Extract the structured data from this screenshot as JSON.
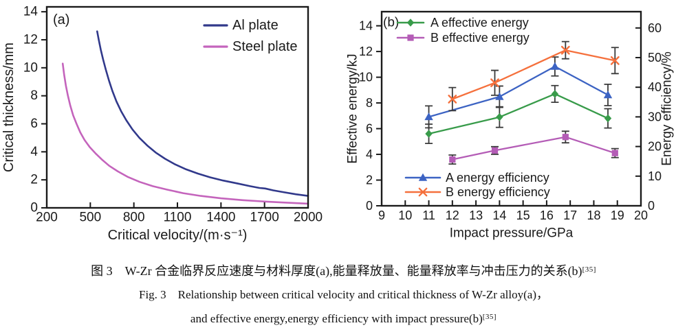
{
  "figure": {
    "caption_zh": "图 3　W-Zr 合金临界反应速度与材料厚度(a),能量释放量、能量释放率与冲击压力的关系(b)",
    "caption_zh_ref": "[35]",
    "caption_en_line1": "Fig. 3　Relationship between critical velocity and critical thickness of W-Zr alloy(a)，",
    "caption_en_line2": "and effective energy,energy efficiency with impact pressure(b)",
    "caption_en_ref": "[35]"
  },
  "colors": {
    "text": "#1a1a1a",
    "axis": "#1a1a1a",
    "error_bar": "#3a3a3a"
  },
  "chart_data": [
    {
      "type": "line",
      "panel_label": "(a)",
      "xlabel": "Critical velocity/(m·s⁻¹)",
      "ylabel": "Critical thickness/mm",
      "xlim": [
        200,
        2000
      ],
      "ylim": [
        0,
        14.35
      ],
      "xticks": [
        200,
        500,
        800,
        1100,
        1400,
        1700,
        2000
      ],
      "yticks": [
        0,
        2,
        4,
        6,
        8,
        10,
        12,
        14
      ],
      "grid": false,
      "legend_position": "top-right-inside",
      "series": [
        {
          "name": "Al plate",
          "color": "#31398b",
          "marker": "none",
          "x": [
            547,
            558,
            572,
            588,
            606,
            628,
            652,
            680,
            712,
            748,
            790,
            838,
            892,
            950,
            1015,
            1085,
            1160,
            1240,
            1325,
            1415,
            1510,
            1600,
            1665,
            1705,
            1760,
            1830,
            1915,
            2000
          ],
          "y": [
            12.6,
            12.0,
            11.3,
            10.6,
            9.9,
            9.1,
            8.35,
            7.6,
            6.9,
            6.25,
            5.6,
            5.0,
            4.45,
            3.95,
            3.5,
            3.1,
            2.75,
            2.45,
            2.18,
            1.95,
            1.75,
            1.55,
            1.42,
            1.38,
            1.25,
            1.12,
            0.97,
            0.85
          ]
        },
        {
          "name": "Steel plate",
          "color": "#c464bc",
          "marker": "none",
          "x": [
            310,
            320,
            332,
            346,
            362,
            382,
            405,
            430,
            460,
            495,
            535,
            580,
            630,
            690,
            760,
            840,
            930,
            1030,
            1140,
            1260,
            1400,
            1550,
            1700,
            1850,
            2000
          ],
          "y": [
            10.3,
            9.5,
            8.7,
            8.0,
            7.3,
            6.6,
            6.0,
            5.4,
            4.85,
            4.35,
            3.9,
            3.45,
            3.0,
            2.6,
            2.2,
            1.85,
            1.55,
            1.3,
            1.05,
            0.85,
            0.68,
            0.55,
            0.45,
            0.37,
            0.3
          ]
        }
      ]
    },
    {
      "type": "line",
      "panel_label": "(b)",
      "xlabel": "Impact pressure/GPa",
      "ylabel_left": "Effective energy/kJ",
      "ylabel_right": "Energy efficiency/%",
      "xlim": [
        9,
        20
      ],
      "ylim_left": [
        0,
        15.1
      ],
      "ylim_right": [
        0,
        65.5
      ],
      "xticks": [
        9,
        10,
        11,
        12,
        13,
        14,
        15,
        16,
        17,
        18,
        19,
        20
      ],
      "yticks_left": [
        0,
        2,
        4,
        6,
        8,
        10,
        12,
        14
      ],
      "yticks_right": [
        0,
        10,
        20,
        30,
        40,
        50,
        60
      ],
      "grid": false,
      "series": [
        {
          "name": "A effective energy",
          "axis": "left",
          "marker": "diamond",
          "color": "#389b4a",
          "x": [
            11.0,
            14.0,
            16.35,
            18.6
          ],
          "y": [
            5.6,
            6.9,
            8.7,
            6.8
          ],
          "yerr": [
            0.75,
            0.8,
            0.65,
            0.75
          ]
        },
        {
          "name": "B effective energy",
          "axis": "left",
          "marker": "square",
          "color": "#b45cb6",
          "x": [
            12.0,
            13.8,
            16.8,
            18.9
          ],
          "y": [
            3.6,
            4.3,
            5.35,
            4.1
          ],
          "yerr": [
            0.35,
            0.3,
            0.45,
            0.35
          ]
        },
        {
          "name": "A energy efficiency",
          "axis": "right",
          "marker": "triangle",
          "color": "#3c63c3",
          "x": [
            11.0,
            14.0,
            16.35,
            18.6
          ],
          "y": [
            30.0,
            36.8,
            47.0,
            37.4
          ],
          "yerr": [
            3.7,
            3.6,
            3.2,
            3.6
          ]
        },
        {
          "name": "B energy efficiency",
          "axis": "right",
          "marker": "x",
          "color": "#f5703c",
          "x": [
            12.0,
            13.8,
            16.8,
            18.9
          ],
          "y": [
            36.0,
            41.5,
            52.5,
            49.0
          ],
          "yerr": [
            3.9,
            4.2,
            2.9,
            4.4
          ]
        }
      ]
    }
  ]
}
